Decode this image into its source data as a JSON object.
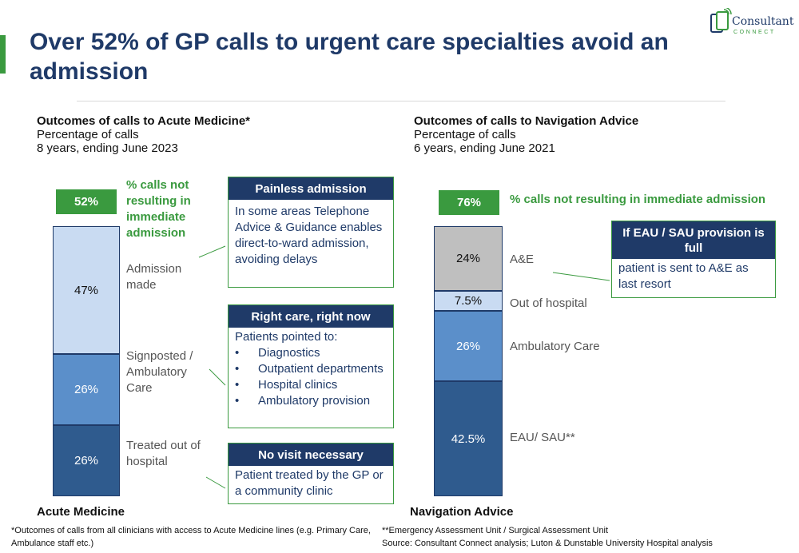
{
  "title": "Over 52% of GP calls to urgent care specialties avoid an admission",
  "logo": {
    "name": "Consultant",
    "sub": "CONNECT"
  },
  "colors": {
    "accent": "#3a9a3f",
    "navy": "#1f3a68"
  },
  "chart_data": [
    {
      "type": "bar",
      "stacked": true,
      "title": "Outcomes of calls to Acute Medicine*",
      "subtitle_1": "Percentage of calls",
      "subtitle_2": "8 years, ending June 2023",
      "xlabel": "Acute Medicine",
      "summary_value": "52%",
      "summary_label": "% calls not resulting in immediate admission",
      "segments": [
        {
          "name": "Treated out of hospital",
          "value": 26,
          "label": "26%",
          "color": "#2f5b8e"
        },
        {
          "name": "Signposted / Ambulatory Care",
          "value": 26,
          "label": "26%",
          "color": "#5b8fca"
        },
        {
          "name": "Admission made",
          "value": 47,
          "label": "47%",
          "color": "#c9dbf2"
        }
      ]
    },
    {
      "type": "bar",
      "stacked": true,
      "title": "Outcomes of calls to Navigation Advice",
      "subtitle_1": "Percentage of calls",
      "subtitle_2": "6 years, ending June 2021",
      "xlabel": "Navigation Advice",
      "summary_value": "76%",
      "summary_label": "% calls not resulting in immediate admission",
      "segments": [
        {
          "name": "EAU/ SAU**",
          "value": 42.5,
          "label": "42.5%",
          "color": "#2f5b8e"
        },
        {
          "name": "Ambulatory Care",
          "value": 26,
          "label": "26%",
          "color": "#5b8fca"
        },
        {
          "name": "Out of hospital",
          "value": 7.5,
          "label": "7.5%",
          "color": "#c9dbf2"
        },
        {
          "name": "A&E",
          "value": 24,
          "label": "24%",
          "color": "#bfbfbf"
        }
      ]
    }
  ],
  "callouts": {
    "painless": {
      "head": "Painless admission",
      "body": "In some areas Telephone Advice & Guidance enables direct-to-ward admission, avoiding delays"
    },
    "right_care": {
      "head": "Right care, right now",
      "intro": "Patients pointed to:",
      "items": [
        "Diagnostics",
        "Outpatient departments",
        "Hospital clinics",
        "Ambulatory provision"
      ]
    },
    "no_visit": {
      "head": "No visit necessary",
      "body": "Patient treated by the GP or a community clinic"
    },
    "eau_full": {
      "head": "If EAU / SAU provision is full",
      "body": "patient is sent to A&E as last resort"
    }
  },
  "footnotes": {
    "left": "*Outcomes of calls from all clinicians with access to Acute Medicine lines (e.g. Primary Care, Ambulance staff etc.)",
    "right_1": "**Emergency Assessment Unit / Surgical Assessment Unit",
    "right_2": "Source: Consultant Connect analysis; Luton & Dunstable University Hospital analysis"
  }
}
